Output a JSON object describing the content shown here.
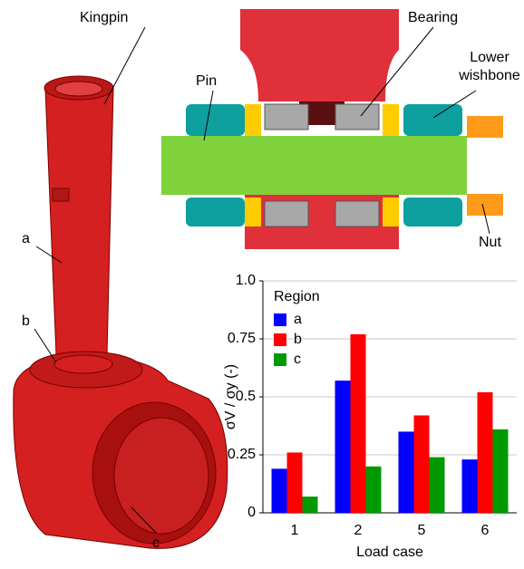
{
  "illustration": {
    "labels": {
      "kingpin": "Kingpin",
      "bearing": "Bearing",
      "lower_wishbone": "Lower wishbone",
      "pin": "Pin",
      "nut": "Nut",
      "a": "a",
      "b": "b",
      "c": "c"
    }
  },
  "chart_data": {
    "type": "bar",
    "y_label": "σV / σy (-)",
    "x_label": "Load case",
    "categories": [
      "1",
      "2",
      "5",
      "6"
    ],
    "series": [
      {
        "name": "a",
        "color": "#0000ff",
        "values": [
          0.19,
          0.57,
          0.35,
          0.23
        ]
      },
      {
        "name": "b",
        "color": "#ff0000",
        "values": [
          0.26,
          0.77,
          0.42,
          0.52
        ]
      },
      {
        "name": "c",
        "color": "#009a00",
        "values": [
          0.07,
          0.2,
          0.24,
          0.36
        ]
      }
    ],
    "legend_title": "Region",
    "legend": "upper left",
    "ylim": [
      0,
      1
    ],
    "yticks": [
      0,
      0.25,
      0.5,
      0.75,
      {
        "value": 1,
        "label": "1.0"
      }
    ],
    "grid": true
  }
}
